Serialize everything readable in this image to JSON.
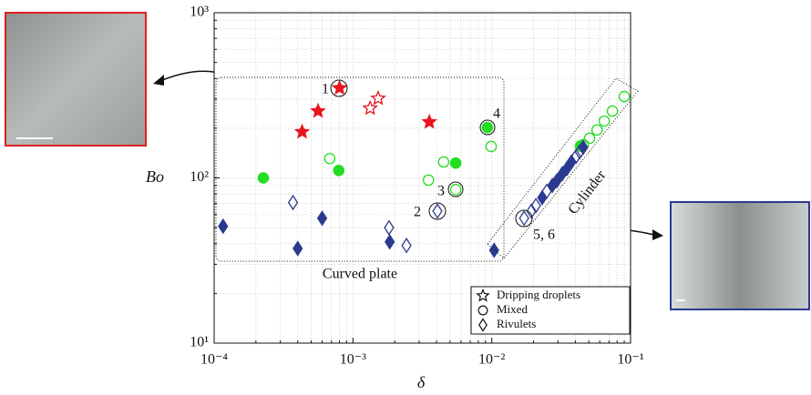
{
  "chart_data": {
    "type": "scatter",
    "x_label": "δ",
    "y_label": "Bo",
    "xlog": true,
    "ylog": true,
    "grid": true,
    "xlim": [
      0.0001,
      0.1
    ],
    "xticks": [
      {
        "value": 0.0001,
        "label": "10⁻⁴"
      },
      {
        "value": 0.001,
        "label": "10⁻³"
      },
      {
        "value": 0.01,
        "label": "10⁻²"
      },
      {
        "value": 0.1,
        "label": "10⁻¹"
      }
    ],
    "ylim": [
      10,
      1000
    ],
    "yticks": [
      {
        "value": 10,
        "label": "10¹"
      },
      {
        "value": 100,
        "label": "10²"
      },
      {
        "value": 1000,
        "label": "10³"
      }
    ],
    "legend": "lower right",
    "series": [
      {
        "name": "Dripping droplets",
        "marker": "star",
        "color": "#e8141b",
        "x": [
          0.0008,
          0.00056,
          0.00043,
          0.00152,
          0.00133,
          0.00355
        ],
        "y": [
          350,
          254,
          190,
          303,
          264,
          218
        ],
        "filled": [
          true,
          true,
          true,
          false,
          false,
          true
        ]
      },
      {
        "name": "Mixed",
        "marker": "circle",
        "color": "#22dd22",
        "x": [
          0.000226,
          0.00068,
          0.00079,
          0.0035,
          0.0045,
          0.0055,
          0.0055,
          0.0093,
          0.0099,
          0.0435,
          0.0456,
          0.0507,
          0.0573,
          0.0646,
          0.074,
          0.0901
        ],
        "y": [
          100,
          131,
          111,
          97,
          125,
          123,
          85,
          202,
          155,
          156,
          159,
          174,
          195,
          221,
          254,
          311
        ],
        "filled": [
          true,
          false,
          true,
          false,
          false,
          true,
          false,
          true,
          false,
          true,
          false,
          false,
          false,
          false,
          false,
          false
        ]
      },
      {
        "name": "Rivulets",
        "marker": "diamond",
        "color": "#2b3a8f",
        "x": [
          0.000116,
          0.00037,
          0.0006,
          0.0004,
          0.00182,
          0.00184,
          0.00243,
          0.00406,
          0.0104,
          0.0171,
          0.0193,
          0.0208,
          0.0231,
          0.0249,
          0.0273,
          0.0294,
          0.0322,
          0.0348,
          0.0375,
          0.0405,
          0.043,
          0.0456
        ],
        "y": [
          51,
          71,
          57,
          37.4,
          50,
          41,
          39,
          63,
          36.5,
          57,
          63,
          68,
          76,
          83,
          90,
          96,
          106,
          114,
          125,
          135,
          144,
          153
        ],
        "filled": [
          true,
          false,
          true,
          true,
          false,
          true,
          false,
          false,
          true,
          false,
          false,
          false,
          true,
          false,
          true,
          true,
          true,
          true,
          true,
          false,
          false,
          true
        ]
      }
    ],
    "annotations": [
      "1",
      "2",
      "3",
      "4",
      "5, 6",
      "Curved plate",
      "Cylinder"
    ]
  }
}
